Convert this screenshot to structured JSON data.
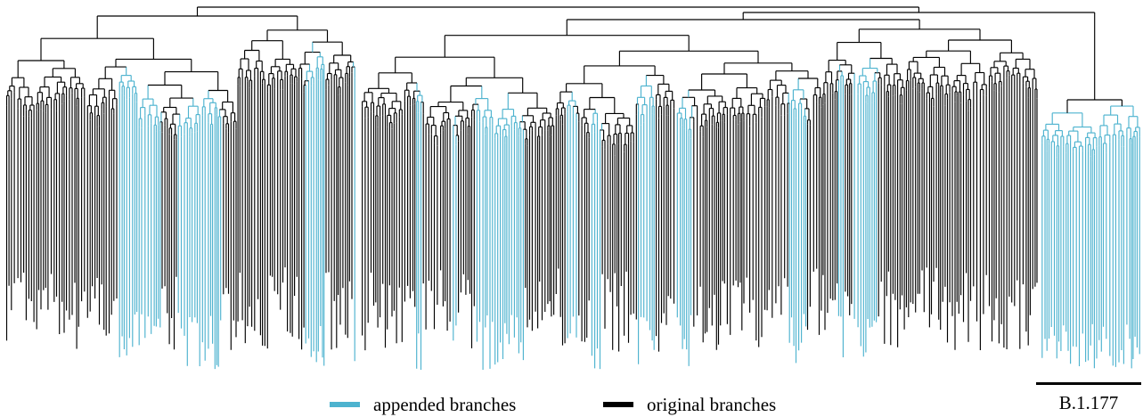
{
  "colors": {
    "appended": "#4db3cf",
    "original": "#000000",
    "background": "#ffffff"
  },
  "legend": {
    "appended_label": "appended branches",
    "original_label": "original branches"
  },
  "clade": {
    "label": "B.1.177"
  }
}
